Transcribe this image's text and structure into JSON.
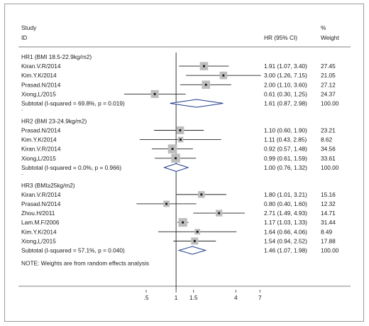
{
  "header": {
    "study": "Study",
    "id": "ID",
    "hr_ci": "HR (95% CI)",
    "pct": "%",
    "weight": "Weight"
  },
  "note": "NOTE: Weights are from random effects analysis",
  "chart_data": {
    "type": "forest",
    "x_scale": "log",
    "null_line": 1,
    "x_ticks": [
      {
        "value": 0.5,
        "label": ".5"
      },
      {
        "value": 1,
        "label": "1"
      },
      {
        "value": 1.5,
        "label": "1.5"
      },
      {
        "value": 4,
        "label": "4"
      },
      {
        "value": 7,
        "label": "7"
      }
    ],
    "xlim": [
      0.3,
      7.2
    ],
    "groups": [
      {
        "title": "HR1 (BMI 18.5-22.9kg/m2)",
        "studies": [
          {
            "id": "Kiran.V.R/2014",
            "hr": 1.91,
            "lo": 1.07,
            "hi": 3.4,
            "ci_text": "1.91 (1.07, 3.40)",
            "weight": "27.45"
          },
          {
            "id": "Kim.Y.K/2014",
            "hr": 3.0,
            "lo": 1.26,
            "hi": 7.15,
            "ci_text": "3.00 (1.26, 7.15)",
            "weight": "21.05"
          },
          {
            "id": "Prasad.N/2014",
            "hr": 2.0,
            "lo": 1.1,
            "hi": 3.6,
            "ci_text": "2.00 (1.10, 3.60)",
            "weight": "27.12"
          },
          {
            "id": "Xiong,L/2015",
            "hr": 0.61,
            "lo": 0.3,
            "hi": 1.25,
            "ci_text": "0.61 (0.30, 1.25)",
            "weight": "24.37"
          }
        ],
        "subtotal": {
          "label": "Subtotal  (I-squared = 69.8%, p = 0.019)",
          "hr": 1.61,
          "lo": 0.87,
          "hi": 2.98,
          "ci_text": "1.61 (0.87, 2.98)",
          "weight": "100.00"
        }
      },
      {
        "title": "HR2 (BMI 23-24.9kg/m2)",
        "studies": [
          {
            "id": "Prasad.N/2014",
            "hr": 1.1,
            "lo": 0.6,
            "hi": 1.9,
            "ci_text": "1.10 (0.60, 1.90)",
            "weight": "23.21"
          },
          {
            "id": "Kim.Y.K/2014",
            "hr": 1.11,
            "lo": 0.43,
            "hi": 2.85,
            "ci_text": "1.11 (0.43, 2.85)",
            "weight": "8.62"
          },
          {
            "id": "Kiran.V.R/2014",
            "hr": 0.92,
            "lo": 0.57,
            "hi": 1.48,
            "ci_text": "0.92 (0.57, 1.48)",
            "weight": "34.56"
          },
          {
            "id": "Xiong,L/2015",
            "hr": 0.99,
            "lo": 0.61,
            "hi": 1.59,
            "ci_text": "0.99 (0.61, 1.59)",
            "weight": "33.61"
          }
        ],
        "subtotal": {
          "label": "Subtotal  (I-squared = 0.0%, p = 0.966)",
          "hr": 1.0,
          "lo": 0.76,
          "hi": 1.32,
          "ci_text": "1.00 (0.76, 1.32)",
          "weight": "100.00"
        }
      },
      {
        "title": "HR3 (BMI≥25kg/m2)",
        "studies": [
          {
            "id": "Kiran.V.R/2014",
            "hr": 1.8,
            "lo": 1.01,
            "hi": 3.21,
            "ci_text": "1.80 (1.01, 3.21)",
            "weight": "15.16"
          },
          {
            "id": "Prasad.N/2014",
            "hr": 0.8,
            "lo": 0.4,
            "hi": 1.6,
            "ci_text": "0.80 (0.40, 1.60)",
            "weight": "12.32"
          },
          {
            "id": "Zhou.H/2011",
            "hr": 2.71,
            "lo": 1.49,
            "hi": 4.93,
            "ci_text": "2.71 (1.49, 4.93)",
            "weight": "14.71"
          },
          {
            "id": "Lam.M.F/2006",
            "hr": 1.17,
            "lo": 1.03,
            "hi": 1.33,
            "ci_text": "1.17 (1.03, 1.33)",
            "weight": "31.44"
          },
          {
            "id": "Kim.Y.K/2014",
            "hr": 1.64,
            "lo": 0.66,
            "hi": 4.06,
            "ci_text": "1.64 (0.66, 4.06)",
            "weight": "8.49"
          },
          {
            "id": "Xiong,L/2015",
            "hr": 1.54,
            "lo": 0.94,
            "hi": 2.52,
            "ci_text": "1.54 (0.94, 2.52)",
            "weight": "17.88"
          }
        ],
        "subtotal": {
          "label": "Subtotal  (I-squared = 57.1%, p = 0.040)",
          "hr": 1.46,
          "lo": 1.07,
          "hi": 1.98,
          "ci_text": "1.46 (1.07, 1.98)",
          "weight": "100.00"
        }
      }
    ]
  }
}
